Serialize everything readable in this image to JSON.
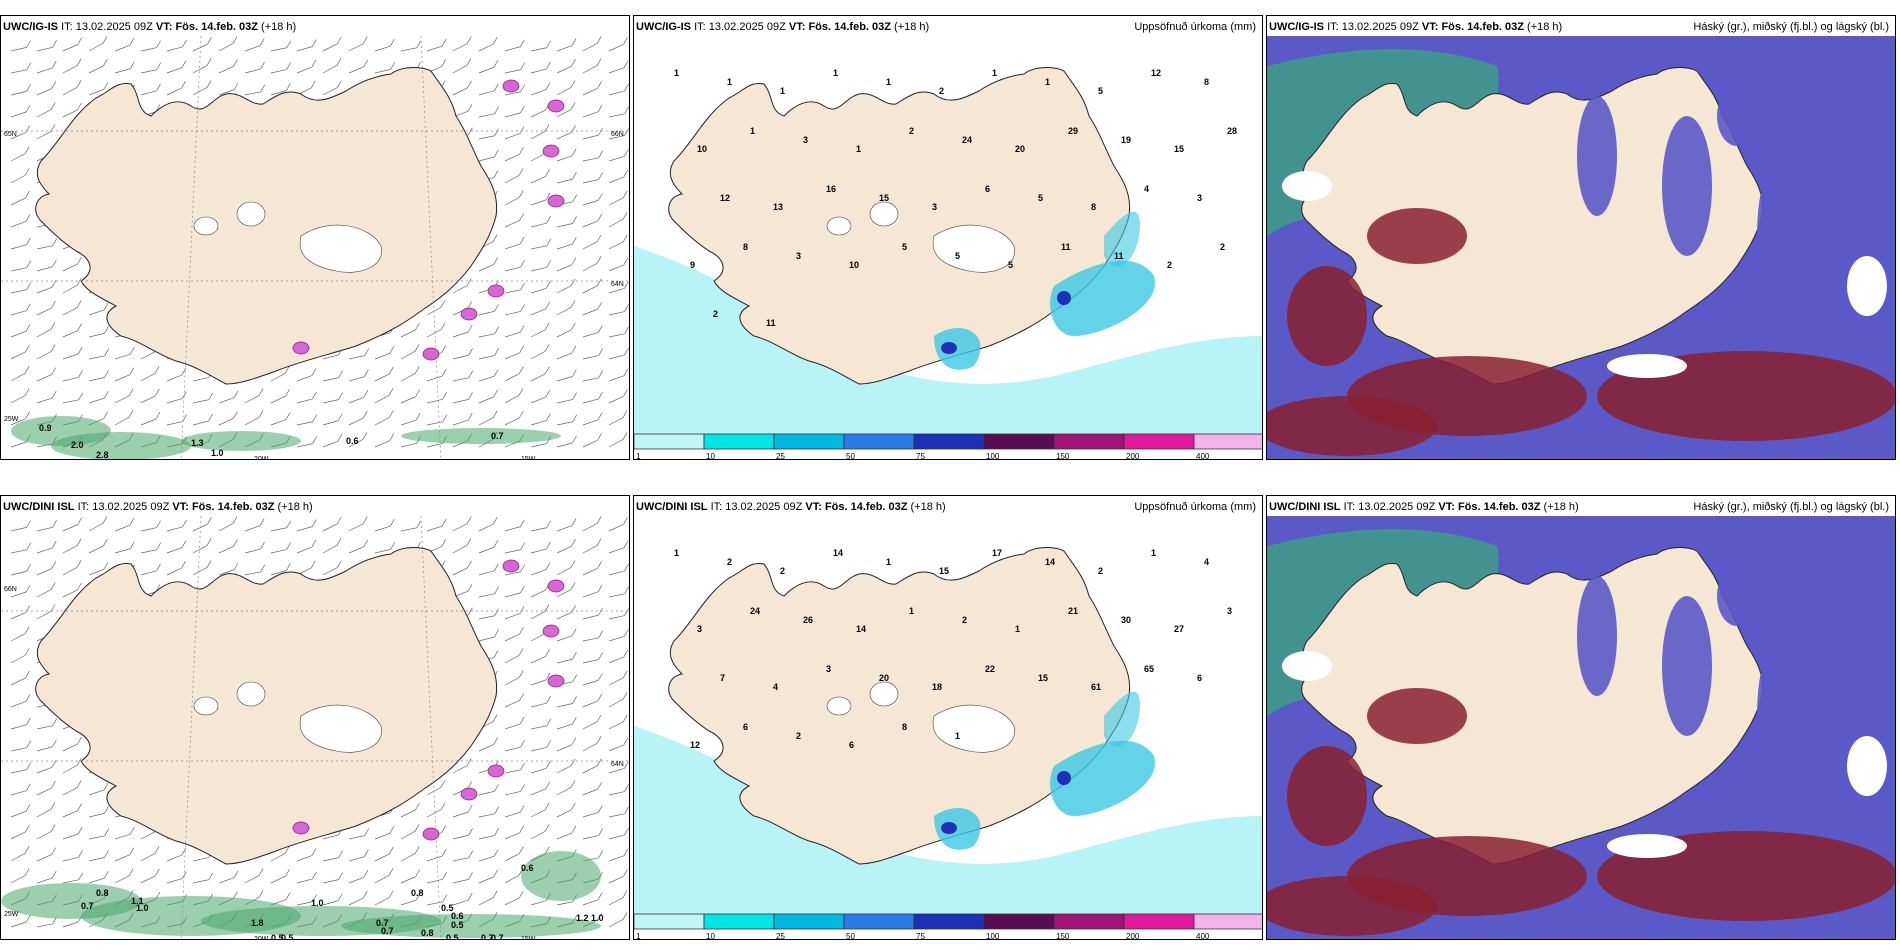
{
  "panels": [
    {
      "model": "UWC/IG-IS",
      "it_label": "IT:",
      "it": "13.02.2025 09Z",
      "vt_label": "VT: Fös. 14.feb. 03Z",
      "lead": "(+18 h)",
      "right": "",
      "labels": [
        "0.9",
        "2.0",
        "2.8",
        "1.3",
        "1.0",
        "0.6",
        "0.7"
      ],
      "axes": [
        "65N",
        "25W",
        "20W",
        "15W",
        "66N",
        "64N"
      ]
    },
    {
      "model": "UWC/IG-IS",
      "it_label": "IT:",
      "it": "13.02.2025 09Z",
      "vt_label": "VT: Fös. 14.feb. 03Z",
      "lead": "(+18 h)",
      "right": "Uppsöfnuð úrkoma (mm)",
      "labels": [
        "1",
        "1",
        "1",
        "1",
        "1",
        "2",
        "1",
        "1",
        "5",
        "12",
        "8",
        "10",
        "1",
        "3",
        "1",
        "2",
        "24",
        "20",
        "29",
        "19",
        "15",
        "28",
        "12",
        "13",
        "16",
        "15",
        "3",
        "6",
        "5",
        "8",
        "4",
        "3",
        "9",
        "8",
        "3",
        "10",
        "5",
        "5",
        "5",
        "11",
        "11",
        "2",
        "2",
        "2",
        "11"
      ]
    },
    {
      "model": "UWC/IG-IS",
      "it_label": "IT:",
      "it": "13.02.2025 09Z",
      "vt_label": "VT: Fös. 14.feb. 03Z",
      "lead": "(+18 h)",
      "right": "Háský (gr.), miðský (fj.bl.) og lágský (bl.)",
      "labels": []
    },
    {
      "model": "UWC/DINI ISL",
      "it_label": "IT:",
      "it": "13.02.2025 09Z",
      "vt_label": "VT: Fös. 14.feb. 03Z",
      "lead": "(+18 h)",
      "right": "",
      "labels": [
        "1.1",
        "1.0",
        "0.8",
        "0.7",
        "1.8",
        "0.7",
        "0.7",
        "0.5",
        "1.0",
        "0.8",
        "0.5",
        "0.6",
        "0.5",
        "0.7",
        "0.6",
        "1.2",
        "1.0",
        "0.5",
        "0.8",
        "0.5",
        "0.7"
      ],
      "axes": [
        "66N",
        "25W",
        "20W",
        "15W",
        "64N"
      ]
    },
    {
      "model": "UWC/DINI ISL",
      "it_label": "IT:",
      "it": "13.02.2025 09Z",
      "vt_label": "VT: Fös. 14.feb. 03Z",
      "lead": "(+18 h)",
      "right": "Uppsöfnuð úrkoma (mm)",
      "labels": [
        "1",
        "2",
        "2",
        "14",
        "1",
        "15",
        "17",
        "14",
        "2",
        "1",
        "4",
        "3",
        "24",
        "26",
        "14",
        "1",
        "2",
        "1",
        "21",
        "30",
        "27",
        "3",
        "7",
        "4",
        "3",
        "20",
        "18",
        "22",
        "15",
        "61",
        "65",
        "6",
        "12",
        "6",
        "2",
        "6",
        "8",
        "1"
      ]
    },
    {
      "model": "UWC/DINI ISL",
      "it_label": "IT:",
      "it": "13.02.2025 09Z",
      "vt_label": "VT: Fös. 14.feb. 03Z",
      "lead": "(+18 h)",
      "right": "Háský (gr.), miðský (fj.bl.) og lágský (bl.)",
      "labels": []
    }
  ],
  "colorbar": {
    "ticks": [
      "1",
      "10",
      "25",
      "50",
      "75",
      "100",
      "150",
      "200",
      "400"
    ],
    "colors": [
      "#bff7f7",
      "#00e5e5",
      "#00b8e0",
      "#2a7be8",
      "#1f2fb8",
      "#5a0c50",
      "#a0147a",
      "#e01a9a",
      "#f3b4ea"
    ]
  },
  "colors": {
    "land": "#f6e6d4",
    "precip_light": "#b8f4f7",
    "precip_mid": "#3cc8e3",
    "high_cloud": "#3e9e85",
    "mid_cloud": "#8a2030",
    "low_cloud": "#5b59c8"
  }
}
